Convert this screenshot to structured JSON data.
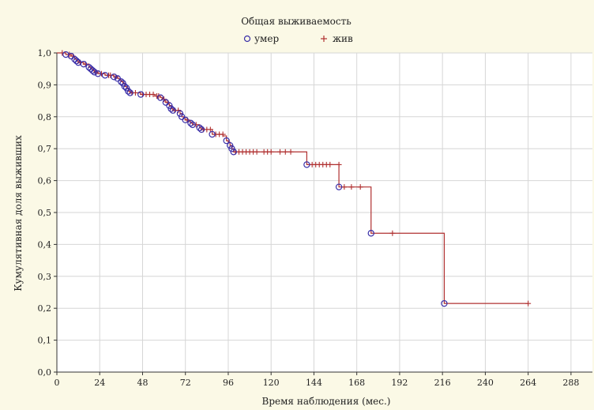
{
  "chart_data": {
    "type": "line",
    "title": "Общая выживаемость",
    "xlabel": "Время наблюдения (мес.)",
    "ylabel": "Кумулятивная доля выживших",
    "xlim": [
      0,
      300
    ],
    "ylim": [
      0,
      1
    ],
    "x_ticks": [
      0,
      24,
      48,
      72,
      96,
      120,
      144,
      168,
      192,
      216,
      240,
      264,
      288
    ],
    "x_tick_labels": [
      "0",
      "24",
      "48",
      "72",
      "96",
      "120",
      "144",
      "168",
      "192",
      "216",
      "240",
      "264",
      "288"
    ],
    "y_ticks": [
      0,
      0.1,
      0.2,
      0.3,
      0.4,
      0.5,
      0.6,
      0.7,
      0.8,
      0.9,
      1.0
    ],
    "y_tick_labels": [
      "0,0",
      "0,1",
      "0,2",
      "0,3",
      "0,4",
      "0,5",
      "0,6",
      "0,7",
      "0,8",
      "0,9",
      "1,0"
    ],
    "grid": true,
    "legend_position": "top-center",
    "colors": {
      "curve": "#b03030",
      "died": "#3a2fa8",
      "alive": "#b03030",
      "grid": "#d6d6d6",
      "plot_bg": "#ffffff",
      "page_bg": "#fbf9e6"
    },
    "legend": [
      {
        "label": "умер",
        "marker": "circle"
      },
      {
        "label": "жив",
        "marker": "plus"
      }
    ],
    "series": [
      {
        "name": "Общая выживаемость",
        "style": "step",
        "points": [
          [
            0,
            1.0
          ],
          [
            5,
            0.995
          ],
          [
            8,
            0.99
          ],
          [
            10,
            0.98
          ],
          [
            11,
            0.975
          ],
          [
            12,
            0.97
          ],
          [
            15,
            0.965
          ],
          [
            18,
            0.955
          ],
          [
            19,
            0.95
          ],
          [
            20,
            0.945
          ],
          [
            21,
            0.94
          ],
          [
            23,
            0.935
          ],
          [
            27,
            0.93
          ],
          [
            32,
            0.925
          ],
          [
            34,
            0.92
          ],
          [
            35,
            0.915
          ],
          [
            36,
            0.91
          ],
          [
            37,
            0.905
          ],
          [
            38,
            0.895
          ],
          [
            39,
            0.89
          ],
          [
            40,
            0.88
          ],
          [
            41,
            0.875
          ],
          [
            47,
            0.87
          ],
          [
            55,
            0.865
          ],
          [
            58,
            0.86
          ],
          [
            59,
            0.855
          ],
          [
            60,
            0.85
          ],
          [
            61,
            0.845
          ],
          [
            62,
            0.84
          ],
          [
            63,
            0.835
          ],
          [
            64,
            0.825
          ],
          [
            65,
            0.82
          ],
          [
            69,
            0.81
          ],
          [
            70,
            0.8
          ],
          [
            71,
            0.795
          ],
          [
            72,
            0.79
          ],
          [
            73,
            0.785
          ],
          [
            75,
            0.78
          ],
          [
            76,
            0.775
          ],
          [
            80,
            0.765
          ],
          [
            81,
            0.76
          ],
          [
            87,
            0.745
          ],
          [
            93,
            0.74
          ],
          [
            95,
            0.725
          ],
          [
            96,
            0.72
          ],
          [
            97,
            0.71
          ],
          [
            98,
            0.7
          ],
          [
            99,
            0.69
          ],
          [
            140,
            0.65
          ],
          [
            158,
            0.58
          ],
          [
            176,
            0.435
          ],
          [
            217,
            0.215
          ],
          [
            264,
            0.215
          ]
        ]
      }
    ],
    "died": [
      [
        5,
        0.995
      ],
      [
        8,
        0.99
      ],
      [
        10,
        0.98
      ],
      [
        11,
        0.975
      ],
      [
        12,
        0.97
      ],
      [
        15,
        0.965
      ],
      [
        18,
        0.955
      ],
      [
        19,
        0.95
      ],
      [
        20,
        0.945
      ],
      [
        21,
        0.94
      ],
      [
        23,
        0.935
      ],
      [
        27,
        0.93
      ],
      [
        32,
        0.925
      ],
      [
        34,
        0.92
      ],
      [
        36,
        0.91
      ],
      [
        37,
        0.905
      ],
      [
        38,
        0.895
      ],
      [
        39,
        0.89
      ],
      [
        40,
        0.88
      ],
      [
        41,
        0.875
      ],
      [
        47,
        0.87
      ],
      [
        58,
        0.86
      ],
      [
        61,
        0.845
      ],
      [
        63,
        0.835
      ],
      [
        64,
        0.825
      ],
      [
        65,
        0.82
      ],
      [
        69,
        0.81
      ],
      [
        70,
        0.8
      ],
      [
        72,
        0.79
      ],
      [
        75,
        0.78
      ],
      [
        76,
        0.775
      ],
      [
        80,
        0.765
      ],
      [
        81,
        0.76
      ],
      [
        87,
        0.745
      ],
      [
        95,
        0.725
      ],
      [
        97,
        0.71
      ],
      [
        98,
        0.7
      ],
      [
        99,
        0.69
      ],
      [
        140,
        0.65
      ],
      [
        158,
        0.58
      ],
      [
        176,
        0.435
      ],
      [
        217,
        0.215
      ]
    ],
    "censored": [
      [
        3,
        1.0
      ],
      [
        7,
        0.995
      ],
      [
        9,
        0.99
      ],
      [
        13,
        0.97
      ],
      [
        16,
        0.965
      ],
      [
        22,
        0.94
      ],
      [
        25,
        0.935
      ],
      [
        29,
        0.93
      ],
      [
        30,
        0.93
      ],
      [
        33,
        0.925
      ],
      [
        42,
        0.875
      ],
      [
        44,
        0.875
      ],
      [
        48,
        0.87
      ],
      [
        50,
        0.87
      ],
      [
        52,
        0.87
      ],
      [
        54,
        0.87
      ],
      [
        56,
        0.865
      ],
      [
        57,
        0.865
      ],
      [
        60,
        0.855
      ],
      [
        62,
        0.845
      ],
      [
        66,
        0.82
      ],
      [
        68,
        0.82
      ],
      [
        73,
        0.79
      ],
      [
        78,
        0.775
      ],
      [
        82,
        0.76
      ],
      [
        84,
        0.76
      ],
      [
        86,
        0.76
      ],
      [
        89,
        0.745
      ],
      [
        91,
        0.745
      ],
      [
        93,
        0.745
      ],
      [
        100,
        0.69
      ],
      [
        102,
        0.69
      ],
      [
        104,
        0.69
      ],
      [
        106,
        0.69
      ],
      [
        108,
        0.69
      ],
      [
        110,
        0.69
      ],
      [
        112,
        0.69
      ],
      [
        116,
        0.69
      ],
      [
        118,
        0.69
      ],
      [
        120,
        0.69
      ],
      [
        125,
        0.69
      ],
      [
        128,
        0.69
      ],
      [
        131,
        0.69
      ],
      [
        143,
        0.65
      ],
      [
        145,
        0.65
      ],
      [
        147,
        0.65
      ],
      [
        149,
        0.65
      ],
      [
        151,
        0.65
      ],
      [
        153,
        0.65
      ],
      [
        158,
        0.65
      ],
      [
        161,
        0.58
      ],
      [
        165,
        0.58
      ],
      [
        170,
        0.58
      ],
      [
        188,
        0.435
      ],
      [
        264,
        0.215
      ]
    ]
  }
}
